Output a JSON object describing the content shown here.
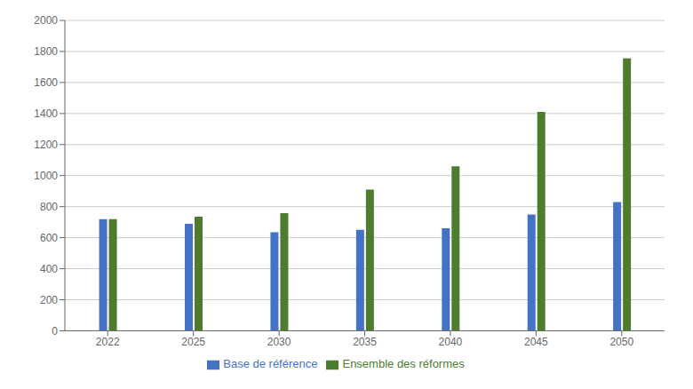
{
  "chart_data": {
    "type": "bar",
    "categories": [
      "2022",
      "2025",
      "2030",
      "2035",
      "2040",
      "2045",
      "2050"
    ],
    "series": [
      {
        "name": "Base de référence",
        "color": "#4472C4",
        "values": [
          720,
          690,
          635,
          650,
          660,
          750,
          830
        ]
      },
      {
        "name": "Ensemble des réformes",
        "color": "#4E7C2E",
        "values": [
          720,
          735,
          758,
          910,
          1060,
          1410,
          1755
        ]
      }
    ],
    "ylim": [
      0,
      2000
    ],
    "yticks": [
      0,
      200,
      400,
      600,
      800,
      1000,
      1200,
      1400,
      1600,
      1800,
      2000
    ],
    "grid": true,
    "legend": "bottom"
  }
}
